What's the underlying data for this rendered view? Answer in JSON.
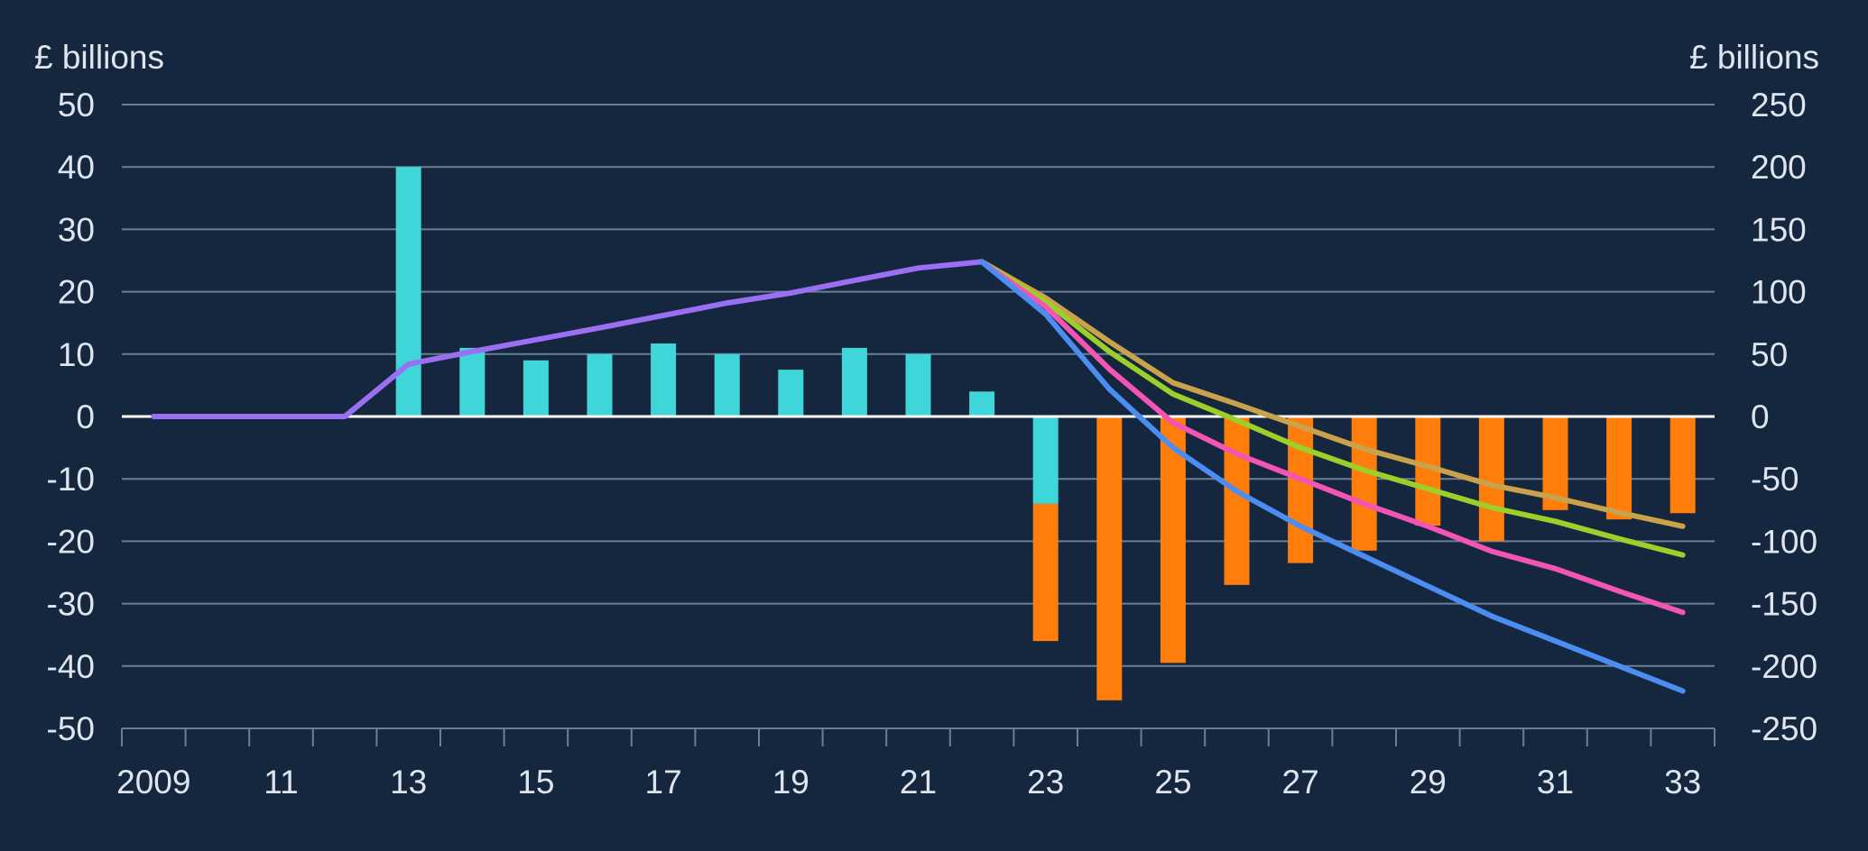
{
  "chart_data": {
    "type": "bar+line",
    "left_axis": {
      "label": "£ billions",
      "ylim": [
        -50,
        50
      ],
      "ticks": [
        "50",
        "40",
        "30",
        "20",
        "10",
        "0",
        "-10",
        "-20",
        "-30",
        "-40",
        "-50"
      ]
    },
    "right_axis": {
      "label": "£ billions",
      "ylim": [
        -250,
        250
      ],
      "ticks": [
        "250",
        "200",
        "150",
        "100",
        "50",
        "0",
        "-50",
        "-100",
        "-150",
        "-200",
        "-250"
      ]
    },
    "x_axis": {
      "range": [
        2008.5,
        2033.5
      ],
      "tick_labels": [
        {
          "year": 2009,
          "label": "2009"
        },
        {
          "year": 2011,
          "label": "11"
        },
        {
          "year": 2013,
          "label": "13"
        },
        {
          "year": 2015,
          "label": "15"
        },
        {
          "year": 2017,
          "label": "17"
        },
        {
          "year": 2019,
          "label": "19"
        },
        {
          "year": 2021,
          "label": "21"
        },
        {
          "year": 2023,
          "label": "23"
        },
        {
          "year": 2025,
          "label": "25"
        },
        {
          "year": 2027,
          "label": "27"
        },
        {
          "year": 2029,
          "label": "29"
        },
        {
          "year": 2031,
          "label": "31"
        },
        {
          "year": 2033,
          "label": "33"
        }
      ]
    },
    "bar_series": [
      {
        "color": "#3ed6d8",
        "axis": "left",
        "points": [
          {
            "x": 2013,
            "y": 40
          },
          {
            "x": 2014,
            "y": 11
          },
          {
            "x": 2015,
            "y": 9
          },
          {
            "x": 2016,
            "y": 10
          },
          {
            "x": 2017,
            "y": 11.7
          },
          {
            "x": 2018,
            "y": 10
          },
          {
            "x": 2019,
            "y": 7.5
          },
          {
            "x": 2020,
            "y": 11
          },
          {
            "x": 2021,
            "y": 10
          },
          {
            "x": 2022,
            "y": 4
          },
          {
            "x": 2023,
            "y": -14
          }
        ]
      },
      {
        "color": "#ff7d0a",
        "axis": "left",
        "stack_on": 0,
        "points": [
          {
            "x": 2023,
            "y": -22
          },
          {
            "x": 2024,
            "y": -45.5
          },
          {
            "x": 2025,
            "y": -39.5
          },
          {
            "x": 2026,
            "y": -27
          },
          {
            "x": 2027,
            "y": -23.5
          },
          {
            "x": 2028,
            "y": -21.5
          },
          {
            "x": 2029,
            "y": -17.5
          },
          {
            "x": 2030,
            "y": -20
          },
          {
            "x": 2031,
            "y": -15
          },
          {
            "x": 2032,
            "y": -16.5
          },
          {
            "x": 2033,
            "y": -15.5
          }
        ]
      }
    ],
    "line_series": [
      {
        "color": "#9b6ff2",
        "axis": "right",
        "points": [
          [
            2009,
            0
          ],
          [
            2012,
            0
          ],
          [
            2013,
            42
          ],
          [
            2014,
            52
          ],
          [
            2016,
            71
          ],
          [
            2018,
            91
          ],
          [
            2019,
            99
          ],
          [
            2020,
            109
          ],
          [
            2021,
            119
          ],
          [
            2022,
            124
          ]
        ]
      },
      {
        "color": "#c9a24b",
        "axis": "right",
        "points": [
          [
            2022,
            124
          ],
          [
            2023,
            95
          ],
          [
            2024,
            60
          ],
          [
            2025,
            27
          ],
          [
            2026,
            10
          ],
          [
            2027,
            -8
          ],
          [
            2028,
            -26
          ],
          [
            2029,
            -40
          ],
          [
            2030,
            -55
          ],
          [
            2031,
            -65
          ],
          [
            2032,
            -77
          ],
          [
            2033,
            -88
          ]
        ]
      },
      {
        "color": "#9ccf29",
        "axis": "right",
        "points": [
          [
            2022,
            124
          ],
          [
            2023,
            92
          ],
          [
            2024,
            52
          ],
          [
            2025,
            18
          ],
          [
            2026,
            -3
          ],
          [
            2027,
            -25
          ],
          [
            2028,
            -43
          ],
          [
            2029,
            -58
          ],
          [
            2030,
            -73
          ],
          [
            2031,
            -84
          ],
          [
            2032,
            -98
          ],
          [
            2033,
            -111
          ]
        ]
      },
      {
        "color": "#f255b4",
        "axis": "right",
        "points": [
          [
            2022,
            124
          ],
          [
            2023,
            88
          ],
          [
            2024,
            38
          ],
          [
            2025,
            -5
          ],
          [
            2026,
            -30
          ],
          [
            2027,
            -50
          ],
          [
            2028,
            -70
          ],
          [
            2029,
            -88
          ],
          [
            2030,
            -108
          ],
          [
            2031,
            -122
          ],
          [
            2032,
            -140
          ],
          [
            2033,
            -157
          ]
        ]
      },
      {
        "color": "#4b8df0",
        "axis": "right",
        "points": [
          [
            2022,
            124
          ],
          [
            2023,
            82
          ],
          [
            2024,
            22
          ],
          [
            2025,
            -25
          ],
          [
            2026,
            -60
          ],
          [
            2027,
            -88
          ],
          [
            2028,
            -112
          ],
          [
            2029,
            -136
          ],
          [
            2030,
            -160
          ],
          [
            2031,
            -180
          ],
          [
            2032,
            -200
          ],
          [
            2033,
            -220
          ]
        ]
      }
    ],
    "grid": true,
    "legend": "none"
  }
}
